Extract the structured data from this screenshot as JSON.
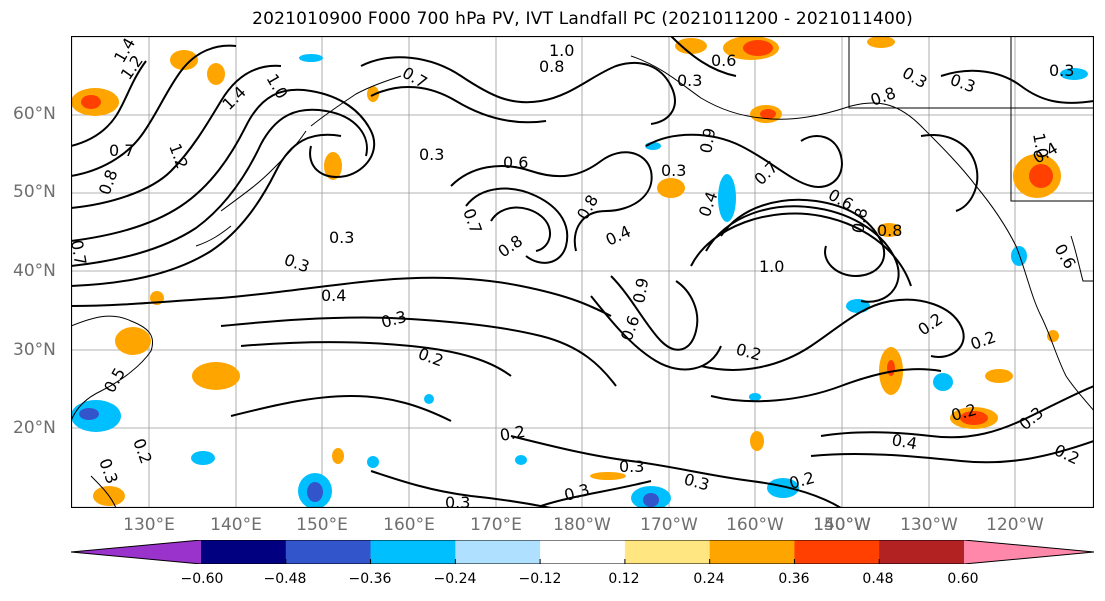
{
  "title": "2021010900 F000 700 hPa PV, IVT Landfall PC (2021011200 - 2021011400)",
  "lat_labels": [
    "60°N",
    "50°N",
    "40°N",
    "30°N",
    "20°N"
  ],
  "lon_labels": [
    "130°E",
    "140°E",
    "150°E",
    "160°E",
    "170°E",
    "180°W",
    "170°W",
    "160°W",
    "150°W",
    "140°W",
    "130°W",
    "120°W"
  ],
  "contour_labels": [
    "1.4",
    "1.2",
    "1.0",
    "0.8",
    "0.7",
    "0.6",
    "0.3",
    "0.4",
    "0.2",
    "0.5",
    "0.9"
  ],
  "colorbar": {
    "colors": [
      "#9933cc",
      "#000080",
      "#3355cc",
      "#00bfff",
      "#b0e0ff",
      "#ffffff",
      "#ffe680",
      "#ffa500",
      "#ff4000",
      "#b22222",
      "#ff88aa"
    ],
    "ticks": [
      "−0.60",
      "−0.48",
      "−0.36",
      "−0.24",
      "−0.12",
      "0.12",
      "0.24",
      "0.36",
      "0.48",
      "0.60"
    ],
    "levels": [
      -0.6,
      -0.48,
      -0.36,
      -0.24,
      -0.12,
      0.12,
      0.24,
      0.36,
      0.48,
      0.6
    ]
  },
  "shading": {
    "positive_color": "#ffa500",
    "strong_positive_color": "#ff4000",
    "negative_color": "#00bfff",
    "strong_negative_color": "#3355cc"
  }
}
